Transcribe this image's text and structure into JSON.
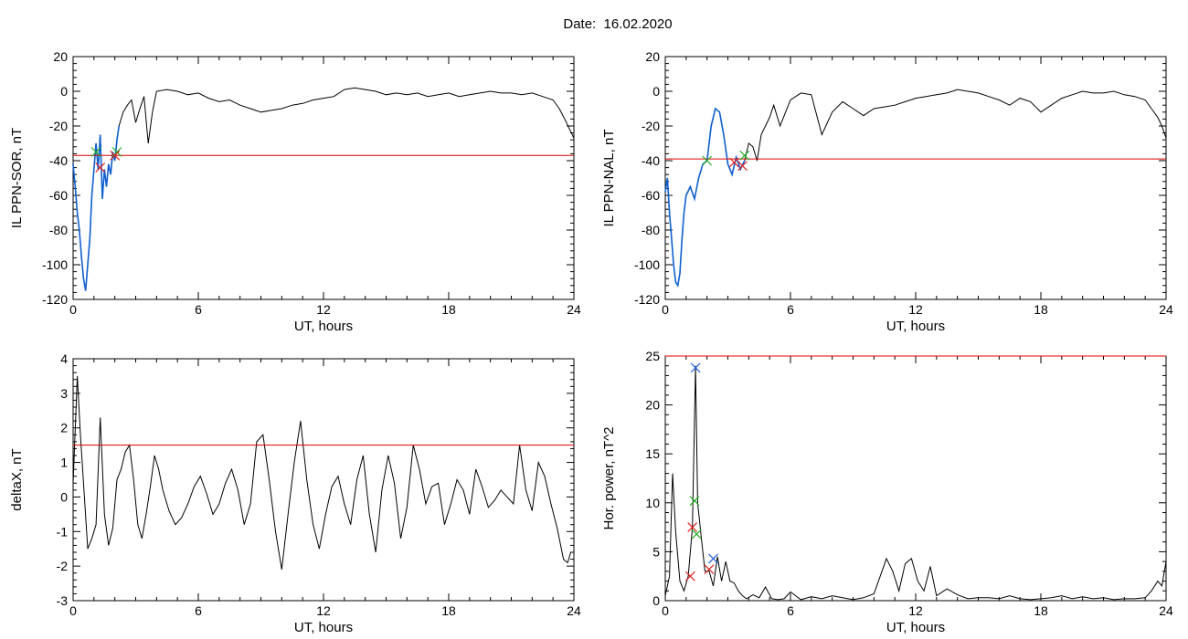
{
  "page_title": "Date:  16.02.2020",
  "colors": {
    "series": "#000000",
    "threshold": "#e00000",
    "highlight": "#1060d0",
    "marker_green": "#20b020",
    "marker_red": "#e02020",
    "marker_blue": "#2060e0"
  },
  "chart_data": [
    {
      "type": "line",
      "xlabel": "UT, hours",
      "ylabel": "IL PPN-SOR, nT",
      "xlim": [
        0,
        24
      ],
      "ylim": [
        -120,
        20
      ],
      "xticks": [
        0,
        6,
        12,
        18,
        24
      ],
      "yticks": [
        -120,
        -100,
        -80,
        -60,
        -40,
        -20,
        0,
        20
      ],
      "threshold": -37,
      "series": [
        {
          "x": [
            0,
            0.1,
            0.2,
            0.3,
            0.4,
            0.5,
            0.6,
            0.7,
            0.8,
            0.9,
            1.0,
            1.1,
            1.2,
            1.3,
            1.4,
            1.5,
            1.6,
            1.7,
            1.8,
            1.9,
            2.0,
            2.1,
            2.2,
            2.4,
            2.6,
            2.8,
            3.0,
            3.2,
            3.4,
            3.6,
            3.8,
            4.0,
            4.5,
            5,
            5.5,
            6,
            6.5,
            7,
            7.5,
            8,
            8.5,
            9,
            9.5,
            10,
            10.5,
            11,
            11.5,
            12,
            12.5,
            13,
            13.5,
            14,
            14.5,
            15,
            15.5,
            16,
            16.5,
            17,
            17.5,
            18,
            18.5,
            19,
            19.5,
            20,
            20.5,
            21,
            21.5,
            22,
            22.5,
            23,
            23.3,
            23.6,
            23.8,
            24
          ],
          "y": [
            -42,
            -55,
            -70,
            -80,
            -95,
            -108,
            -115,
            -100,
            -85,
            -60,
            -45,
            -30,
            -45,
            -25,
            -62,
            -45,
            -55,
            -42,
            -48,
            -35,
            -40,
            -28,
            -20,
            -12,
            -8,
            -5,
            -18,
            -10,
            -3,
            -30,
            -12,
            0,
            1,
            0,
            -2,
            -1,
            -4,
            -6,
            -5,
            -8,
            -10,
            -12,
            -11,
            -10,
            -8,
            -7,
            -5,
            -4,
            -3,
            1,
            2,
            1,
            0,
            -2,
            -1,
            -2,
            -1,
            -3,
            -2,
            -1,
            -3,
            -2,
            -1,
            0,
            -1,
            -1,
            -2,
            -1,
            -3,
            -5,
            -10,
            -17,
            -22,
            -27
          ]
        }
      ],
      "markers_green_x": [
        [
          1.1,
          -35
        ],
        [
          2.1,
          -35
        ]
      ],
      "markers_red_x": [
        [
          1.3,
          -44
        ],
        [
          2.0,
          -37
        ]
      ]
    },
    {
      "type": "line",
      "xlabel": "UT, hours",
      "ylabel": "IL PPN-NAL, nT",
      "xlim": [
        0,
        24
      ],
      "ylim": [
        -120,
        20
      ],
      "xticks": [
        0,
        6,
        12,
        18,
        24
      ],
      "yticks": [
        -120,
        -100,
        -80,
        -60,
        -40,
        -20,
        0,
        20
      ],
      "threshold": -39,
      "series": [
        {
          "x": [
            0,
            0.1,
            0.2,
            0.3,
            0.4,
            0.5,
            0.6,
            0.7,
            0.8,
            0.9,
            1.0,
            1.2,
            1.4,
            1.6,
            1.8,
            2.0,
            2.2,
            2.4,
            2.6,
            2.8,
            3.0,
            3.2,
            3.4,
            3.6,
            3.8,
            4.0,
            4.2,
            4.4,
            4.6,
            4.8,
            5.0,
            5.2,
            5.5,
            6,
            6.5,
            7,
            7.5,
            8,
            8.5,
            9,
            9.5,
            10,
            10.5,
            11,
            11.5,
            12,
            12.5,
            13,
            13.5,
            14,
            14.5,
            15,
            15.5,
            16,
            16.5,
            17,
            17.5,
            18,
            18.5,
            19,
            19.5,
            20,
            20.5,
            21,
            21.5,
            22,
            22.5,
            23,
            23.3,
            23.6,
            23.8,
            24
          ],
          "y": [
            -58,
            -50,
            -70,
            -85,
            -100,
            -110,
            -112,
            -105,
            -85,
            -70,
            -60,
            -55,
            -62,
            -50,
            -42,
            -40,
            -20,
            -10,
            -12,
            -25,
            -42,
            -48,
            -38,
            -45,
            -40,
            -30,
            -32,
            -40,
            -25,
            -20,
            -15,
            -8,
            -20,
            -5,
            -1,
            -2,
            -25,
            -12,
            -6,
            -10,
            -14,
            -10,
            -9,
            -8,
            -6,
            -4,
            -3,
            -2,
            -1,
            1,
            0,
            -1,
            -3,
            -5,
            -8,
            -4,
            -6,
            -12,
            -8,
            -4,
            -2,
            0,
            -1,
            -1,
            0,
            -2,
            -3,
            -5,
            -10,
            -15,
            -20,
            -27
          ]
        }
      ],
      "markers_green_x": [
        [
          2.0,
          -40
        ],
        [
          3.8,
          -37
        ]
      ],
      "markers_red_x": [
        [
          3.3,
          -41
        ],
        [
          3.7,
          -43
        ]
      ]
    },
    {
      "type": "line",
      "xlabel": "UT, hours",
      "ylabel": "deltaX, nT",
      "xlim": [
        0,
        24
      ],
      "ylim": [
        -3,
        4
      ],
      "xticks": [
        0,
        6,
        12,
        18,
        24
      ],
      "yticks": [
        -3,
        -2,
        -1,
        0,
        1,
        2,
        3,
        4
      ],
      "threshold": 1.5,
      "series": [
        {
          "x": [
            0,
            0.2,
            0.35,
            0.5,
            0.7,
            0.9,
            1.1,
            1.3,
            1.5,
            1.7,
            1.9,
            2.1,
            2.3,
            2.5,
            2.7,
            2.9,
            3.1,
            3.3,
            3.5,
            3.7,
            3.9,
            4.1,
            4.3,
            4.6,
            4.9,
            5.2,
            5.5,
            5.8,
            6.1,
            6.4,
            6.7,
            7,
            7.3,
            7.6,
            7.9,
            8.2,
            8.5,
            8.8,
            9.1,
            9.4,
            9.7,
            10,
            10.3,
            10.6,
            10.9,
            11.2,
            11.5,
            11.8,
            12.1,
            12.4,
            12.7,
            13,
            13.3,
            13.6,
            13.9,
            14.2,
            14.5,
            14.8,
            15.1,
            15.4,
            15.7,
            16,
            16.3,
            16.6,
            16.9,
            17.2,
            17.5,
            17.8,
            18.1,
            18.4,
            18.7,
            19,
            19.3,
            19.6,
            19.9,
            20.2,
            20.5,
            20.8,
            21.1,
            21.4,
            21.7,
            22,
            22.3,
            22.6,
            22.9,
            23.2,
            23.5,
            23.7,
            23.85,
            24
          ],
          "y": [
            0.4,
            3.5,
            1.8,
            0.4,
            -1.5,
            -1.2,
            -0.8,
            2.3,
            -0.5,
            -1.4,
            -0.9,
            0.5,
            0.8,
            1.3,
            1.5,
            0.5,
            -0.8,
            -1.2,
            -0.5,
            0.3,
            1.2,
            0.8,
            0.2,
            -0.4,
            -0.8,
            -0.6,
            -0.2,
            0.3,
            0.6,
            0.1,
            -0.5,
            -0.2,
            0.4,
            0.8,
            0.2,
            -0.8,
            -0.2,
            1.6,
            1.8,
            0.5,
            -1.0,
            -2.1,
            -0.5,
            1.0,
            2.2,
            0.5,
            -0.8,
            -1.5,
            -0.5,
            0.3,
            0.6,
            -0.2,
            -0.8,
            0.5,
            1.2,
            -0.5,
            -1.6,
            0.2,
            1.2,
            0.4,
            -1.2,
            -0.3,
            1.5,
            0.8,
            -0.2,
            0.3,
            0.4,
            -0.8,
            -0.2,
            0.5,
            0.2,
            -0.5,
            0.8,
            0.3,
            -0.3,
            -0.1,
            0.2,
            0.0,
            -0.2,
            1.5,
            0.2,
            -0.4,
            1.0,
            0.6,
            -0.2,
            -0.9,
            -1.8,
            -1.9,
            -1.6,
            -1.6
          ]
        }
      ]
    },
    {
      "type": "line",
      "xlabel": "UT, hours",
      "ylabel": "Hor. power, nT^2",
      "xlim": [
        0,
        24
      ],
      "ylim": [
        0,
        25
      ],
      "xticks": [
        0,
        6,
        12,
        18,
        24
      ],
      "yticks": [
        0,
        5,
        10,
        15,
        20,
        25
      ],
      "threshold": 25,
      "series": [
        {
          "x": [
            0,
            0.2,
            0.35,
            0.5,
            0.7,
            0.9,
            1.1,
            1.3,
            1.45,
            1.55,
            1.7,
            1.9,
            2.1,
            2.3,
            2.5,
            2.7,
            2.9,
            3.1,
            3.3,
            3.5,
            3.7,
            3.9,
            4.2,
            4.5,
            4.8,
            5.1,
            5.4,
            5.7,
            6,
            6.5,
            7,
            7.5,
            8,
            8.5,
            9,
            9.5,
            10,
            10.3,
            10.6,
            10.9,
            11.2,
            11.5,
            11.8,
            12.1,
            12.4,
            12.7,
            13,
            13.5,
            14,
            14.5,
            15,
            15.5,
            16,
            16.5,
            17,
            17.5,
            18,
            18.5,
            19,
            19.5,
            20,
            20.5,
            21,
            21.5,
            22,
            22.5,
            23,
            23.3,
            23.6,
            23.8,
            24
          ],
          "y": [
            0.5,
            2.5,
            13,
            7,
            2,
            1,
            2.5,
            7.5,
            24,
            10,
            7,
            3,
            3,
            1.5,
            4.5,
            2,
            4,
            2,
            1.8,
            1,
            0.5,
            0.2,
            0.6,
            0.3,
            1.4,
            0.2,
            0.1,
            0.2,
            0.9,
            0.1,
            0.4,
            0.2,
            0.5,
            0.3,
            0.1,
            0.3,
            0.7,
            2.5,
            4.3,
            3,
            1,
            3.8,
            4.3,
            2,
            1,
            3.5,
            0.5,
            1.2,
            0.6,
            0.2,
            0.3,
            0.3,
            0.2,
            0.5,
            0.2,
            0.1,
            0.2,
            0.3,
            0.5,
            0.2,
            0.4,
            0.2,
            0.3,
            0.1,
            0.2,
            0.2,
            0.3,
            1,
            2,
            1.5,
            4
          ]
        }
      ],
      "markers_green_x": [
        [
          1.4,
          10.2
        ],
        [
          1.5,
          6.8
        ]
      ],
      "markers_red_x": [
        [
          1.2,
          2.5
        ],
        [
          1.3,
          7.5
        ],
        [
          2.1,
          3.2
        ]
      ],
      "markers_blue_x": [
        [
          1.45,
          23.8
        ],
        [
          2.3,
          4.3
        ]
      ]
    }
  ]
}
